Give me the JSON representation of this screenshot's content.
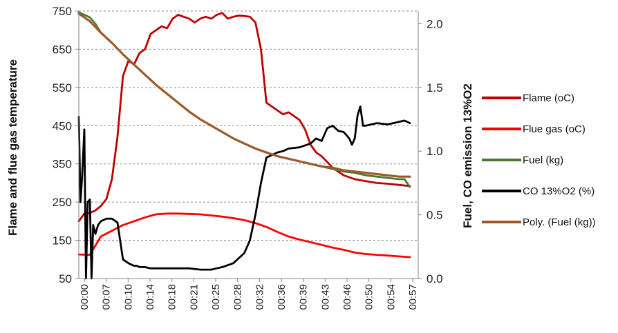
{
  "chart_data": {
    "type": "line",
    "xlabel": "",
    "ylabel": "Flame and flue gas temperature",
    "y2label": "Fuel, CO emission 13%O2",
    "ylim": [
      50,
      750
    ],
    "y2lim": [
      0.0,
      2.1
    ],
    "y_ticks": [
      "750",
      "650",
      "550",
      "450",
      "350",
      "250",
      "150",
      "50"
    ],
    "y2_ticks": [
      "2.0",
      "1.5",
      "1.0",
      "0.5",
      "0.0"
    ],
    "x_ticks": [
      "00:00",
      "00:07",
      "00:10",
      "00:14",
      "00:18",
      "00:21",
      "00:25",
      "00:28",
      "00:32",
      "00:36",
      "00:39",
      "00:43",
      "00:46",
      "00:50",
      "00:54",
      "00:57"
    ],
    "x_unit": "minutes",
    "grid": "horizontal dashed",
    "legend_position": "right",
    "series": [
      {
        "name": "Flame (oC)",
        "axis": "left",
        "color": "#c00000",
        "x": [
          0,
          1,
          2,
          3,
          4,
          5,
          6,
          7,
          8,
          9,
          10,
          11,
          12,
          13,
          14,
          15,
          16,
          17,
          18,
          19,
          20,
          21,
          22,
          23,
          24,
          25,
          26,
          27,
          28,
          29,
          30,
          31,
          32,
          33,
          34,
          35,
          36,
          37,
          38,
          39,
          40,
          41,
          42,
          43,
          44,
          45,
          46,
          47,
          48,
          49,
          50,
          52,
          54,
          56,
          58,
          60
        ],
        "values": [
          200,
          220,
          222,
          228,
          240,
          258,
          310,
          420,
          580,
          620,
          610,
          640,
          650,
          690,
          700,
          710,
          705,
          730,
          740,
          735,
          730,
          720,
          730,
          735,
          730,
          740,
          745,
          730,
          735,
          738,
          737,
          735,
          720,
          650,
          510,
          500,
          490,
          480,
          485,
          475,
          465,
          440,
          400,
          380,
          370,
          355,
          340,
          330,
          320,
          315,
          310,
          305,
          300,
          298,
          295,
          292
        ]
      },
      {
        "name": "Flue gas (oC)",
        "axis": "left",
        "color": "#ff0000",
        "x": [
          0,
          2,
          4,
          6,
          8,
          10,
          12,
          14,
          16,
          18,
          20,
          22,
          24,
          26,
          28,
          30,
          32,
          34,
          36,
          38,
          40,
          42,
          44,
          46,
          48,
          50,
          52,
          54,
          56,
          58,
          60
        ],
        "values": [
          113,
          112,
          160,
          175,
          190,
          200,
          210,
          218,
          220,
          220,
          219,
          218,
          215,
          212,
          208,
          203,
          195,
          185,
          172,
          160,
          152,
          145,
          138,
          131,
          125,
          118,
          114,
          112,
          110,
          108,
          106
        ]
      },
      {
        "name": "Fuel (kg)",
        "axis": "right",
        "color": "#4a7a32",
        "x": [
          0,
          1,
          2,
          3,
          4,
          6,
          8,
          10,
          12,
          14,
          16,
          18,
          20,
          22,
          24,
          26,
          28,
          30,
          32,
          34,
          36,
          38,
          40,
          42,
          44,
          46,
          48,
          50,
          52,
          54,
          56,
          58,
          59,
          60
        ],
        "values": [
          2.09,
          2.07,
          2.05,
          2.0,
          1.93,
          1.85,
          1.76,
          1.68,
          1.6,
          1.52,
          1.45,
          1.38,
          1.31,
          1.25,
          1.2,
          1.15,
          1.1,
          1.06,
          1.02,
          0.99,
          0.96,
          0.94,
          0.92,
          0.9,
          0.88,
          0.86,
          0.84,
          0.83,
          0.81,
          0.8,
          0.79,
          0.78,
          0.78,
          0.72
        ]
      },
      {
        "name": "CO 13%O2 (%)",
        "axis": "right",
        "color": "#000000",
        "x": [
          0,
          0.3,
          0.6,
          1.0,
          1.3,
          1.6,
          2.0,
          2.3,
          2.6,
          3.0,
          3.5,
          4.0,
          5.0,
          6.0,
          7.0,
          8.0,
          9.0,
          10.0,
          10.5,
          11.0,
          12.0,
          13.0,
          14.0,
          16.0,
          18.0,
          20.0,
          22.0,
          24.0,
          25.0,
          26.0,
          28.0,
          30.0,
          31.0,
          32.0,
          33.0,
          34.0,
          35.0,
          36.0,
          37.0,
          38.0,
          40.0,
          42.0,
          43.0,
          44.0,
          45.0,
          46.0,
          47.0,
          48.0,
          49.0,
          49.5,
          50.0,
          50.5,
          51.0,
          51.5,
          52.0,
          53.0,
          54.0,
          56.0,
          58.0,
          59.0,
          60.0
        ],
        "values": [
          1.27,
          0.6,
          0.8,
          1.17,
          0.0,
          0.6,
          0.62,
          0.0,
          0.42,
          0.35,
          0.42,
          0.45,
          0.47,
          0.47,
          0.44,
          0.15,
          0.12,
          0.1,
          0.1,
          0.09,
          0.09,
          0.08,
          0.08,
          0.08,
          0.08,
          0.08,
          0.07,
          0.07,
          0.08,
          0.09,
          0.12,
          0.2,
          0.3,
          0.5,
          0.75,
          0.95,
          0.97,
          0.99,
          1.0,
          1.02,
          1.03,
          1.06,
          1.1,
          1.08,
          1.18,
          1.2,
          1.16,
          1.15,
          1.1,
          1.05,
          1.1,
          1.28,
          1.35,
          1.2,
          1.2,
          1.21,
          1.22,
          1.21,
          1.23,
          1.24,
          1.22
        ]
      },
      {
        "name": "Poly. (Fuel (kg))",
        "axis": "right",
        "color": "#9c5a2a",
        "x": [
          0,
          2,
          4,
          6,
          8,
          10,
          12,
          14,
          16,
          18,
          20,
          22,
          24,
          26,
          28,
          30,
          32,
          34,
          36,
          38,
          40,
          42,
          44,
          46,
          48,
          50,
          52,
          54,
          56,
          58,
          60
        ],
        "values": [
          2.08,
          2.02,
          1.93,
          1.85,
          1.76,
          1.68,
          1.6,
          1.52,
          1.45,
          1.38,
          1.31,
          1.25,
          1.2,
          1.15,
          1.1,
          1.06,
          1.02,
          0.99,
          0.96,
          0.94,
          0.92,
          0.9,
          0.88,
          0.87,
          0.85,
          0.84,
          0.83,
          0.82,
          0.81,
          0.8,
          0.8
        ]
      }
    ]
  }
}
